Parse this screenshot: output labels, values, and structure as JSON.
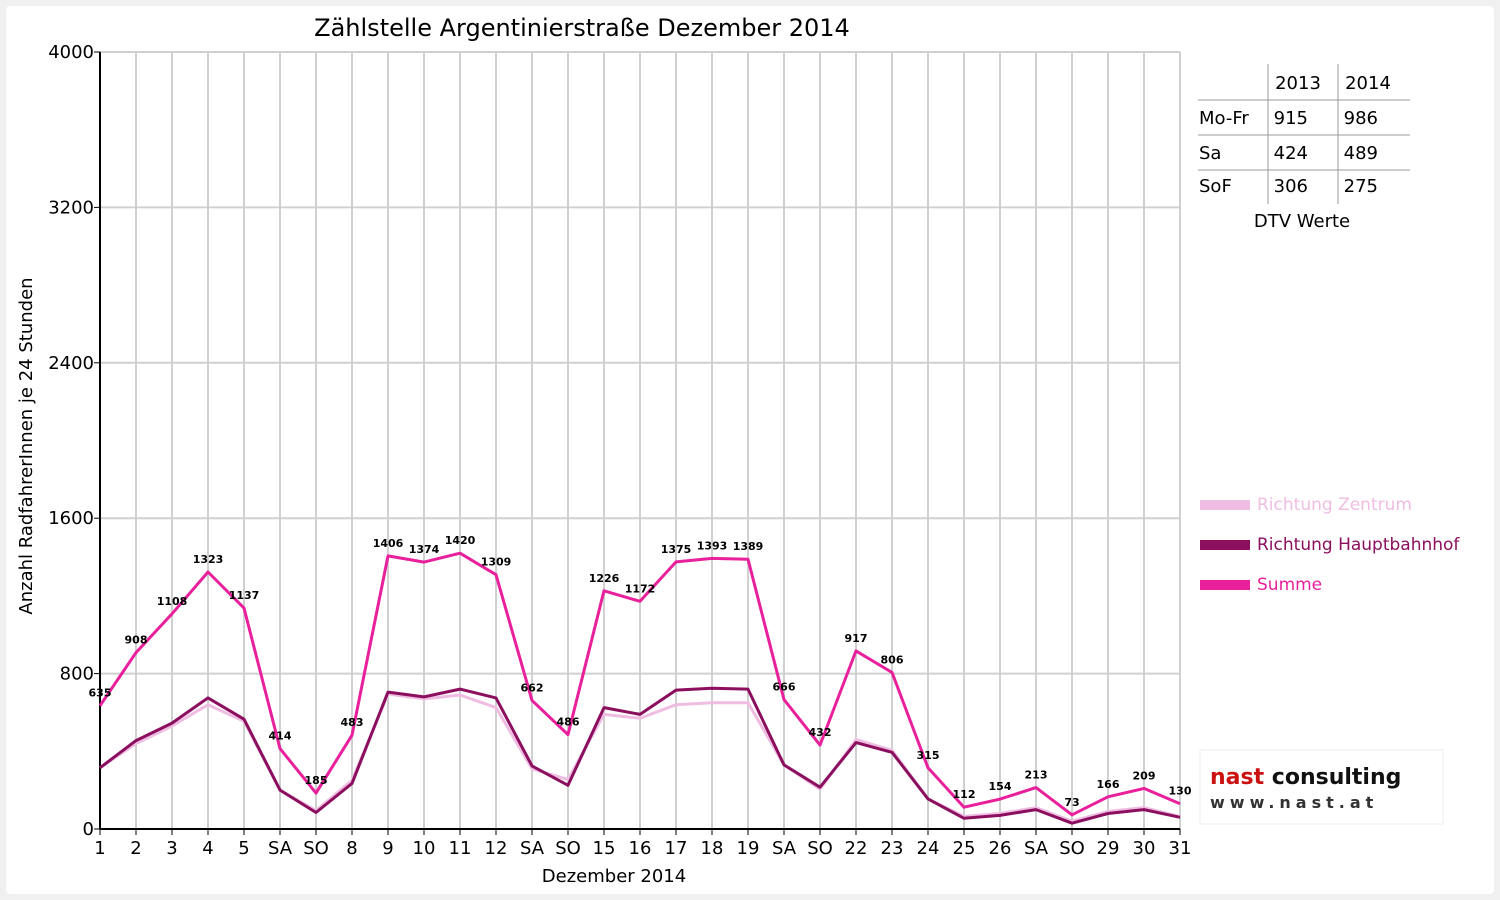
{
  "colors": {
    "zentrum": "#efbde2",
    "hauptbahnhof": "#8c0e5e",
    "summe": "#e8209c",
    "weekend_label": "#e00000",
    "grid": "#d0d0d0"
  },
  "chart_data": {
    "type": "line",
    "title": "Zählstelle Argentinierstraße Dezember 2014",
    "xlabel": "Dezember 2014",
    "ylabel": "Anzahl RadfahrerInnen je 24 Stunden",
    "ylim": [
      0,
      4000
    ],
    "yticks": [
      "0",
      "800",
      "1600",
      "2400",
      "3200",
      "4000"
    ],
    "grid": true,
    "legend_position": "right",
    "categories": [
      "1",
      "2",
      "3",
      "4",
      "5",
      "SA",
      "SO",
      "8",
      "9",
      "10",
      "11",
      "12",
      "SA",
      "SO",
      "15",
      "16",
      "17",
      "18",
      "19",
      "SA",
      "SO",
      "22",
      "23",
      "24",
      "25",
      "26",
      "SA",
      "SO",
      "29",
      "30",
      "31"
    ],
    "red_categories": [
      6,
      7,
      13,
      20,
      24,
      25,
      27
    ],
    "series": [
      {
        "name": "Richtung Zentrum",
        "values": [
          315,
          440,
          530,
          640,
          555,
          200,
          95,
          250,
          695,
          670,
          690,
          625,
          310,
          255,
          590,
          570,
          640,
          650,
          650,
          330,
          205,
          460,
          405,
          155,
          65,
          80,
          110,
          40,
          90,
          110,
          65
        ]
      },
      {
        "name": "Richtung Hauptbahnhof",
        "values": [
          315,
          455,
          545,
          675,
          565,
          200,
          85,
          235,
          705,
          680,
          720,
          675,
          325,
          225,
          625,
          590,
          715,
          725,
          720,
          330,
          215,
          445,
          395,
          155,
          55,
          70,
          100,
          30,
          80,
          100,
          60
        ]
      },
      {
        "name": "Summe",
        "values": [
          635,
          908,
          1108,
          1323,
          1137,
          414,
          185,
          483,
          1406,
          1374,
          1420,
          1309,
          662,
          486,
          1226,
          1172,
          1375,
          1393,
          1389,
          666,
          432,
          917,
          806,
          315,
          112,
          154,
          213,
          73,
          166,
          209,
          130
        ],
        "data_labels": [
          "635",
          "908",
          "1108",
          "1323",
          "1137",
          "414",
          "185",
          "483",
          "1406",
          "1374",
          "1420",
          "1309",
          "662",
          "486",
          "1226",
          "1172",
          "1375",
          "1393",
          "1389",
          "666",
          "432",
          "917",
          "806",
          "315",
          "112",
          "154",
          "213",
          "73",
          "166",
          "209",
          "130"
        ]
      }
    ]
  },
  "dtv_table": {
    "headers": [
      "",
      "2013",
      "2014"
    ],
    "rows": [
      [
        "Mo-Fr",
        "915",
        "986"
      ],
      [
        "Sa",
        "424",
        "489"
      ],
      [
        "SoF",
        "306",
        "275"
      ]
    ],
    "caption": "DTV Werte"
  },
  "logo": {
    "line1": "nast consulting",
    "line2": "www.nast.at"
  }
}
